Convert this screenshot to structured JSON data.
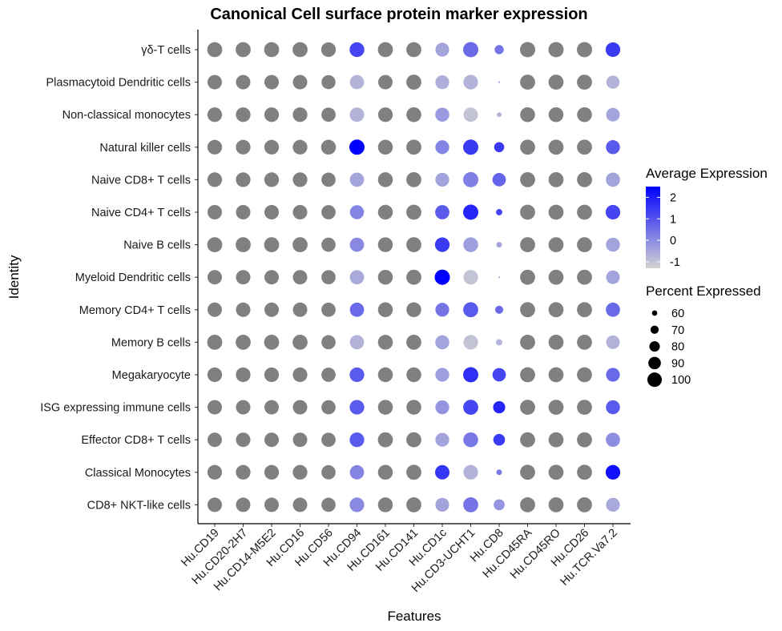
{
  "chart_data": {
    "type": "dot",
    "title": "Canonical Cell surface protein marker expression",
    "xlabel": "Features",
    "ylabel": "Identity",
    "features": [
      "Hu.CD19",
      "Hu.CD20-2H7",
      "Hu.CD14-M5E2",
      "Hu.CD16",
      "Hu.CD56",
      "Hu.CD94",
      "Hu.CD161",
      "Hu.CD141",
      "Hu.CD1c",
      "Hu.CD3-UCHT1",
      "Hu.CD8",
      "Hu.CD45RA",
      "Hu.CD45RO",
      "Hu.CD26",
      "Hu.TCR.Va7.2"
    ],
    "identities": [
      "γδ-T cells",
      "Plasmacytoid Dendritic cells",
      "Non-classical monocytes",
      "Natural killer  cells",
      "Naive CD8+ T cells",
      "Naive CD4+ T cells",
      "Naive B cells",
      "Myeloid Dendritic cells",
      "Memory CD4+ T cells",
      "Memory B cells",
      "Megakaryocyte",
      "ISG expressing immune cells",
      "Effector CD8+ T cells",
      "Classical Monocytes",
      "CD8+ NKT-like cells"
    ],
    "na_color": "#808080",
    "color_scale": {
      "low": "#d3d3d3",
      "high": "#0000ff",
      "min": -1.5,
      "max": 2.5
    },
    "legend": {
      "color_title": "Average Expression",
      "color_ticks": [
        2,
        1,
        0,
        -1
      ],
      "size_title": "Percent Expressed",
      "size_ticks": [
        60,
        70,
        80,
        90,
        100
      ]
    },
    "percent_expressed": [
      [
        99,
        99,
        99,
        99,
        97,
        98,
        99,
        99,
        93,
        100,
        72,
        100,
        100,
        100,
        97
      ],
      [
        96,
        96,
        96,
        96,
        94,
        95,
        96,
        99,
        93,
        97,
        55,
        99,
        99,
        99,
        90
      ],
      [
        97,
        97,
        97,
        97,
        95,
        96,
        97,
        98,
        94,
        96,
        58,
        98,
        98,
        98,
        92
      ],
      [
        97,
        97,
        97,
        97,
        98,
        100,
        98,
        99,
        93,
        100,
        76,
        99,
        99,
        99,
        94
      ],
      [
        97,
        97,
        97,
        97,
        95,
        95,
        98,
        99,
        93,
        100,
        91,
        99,
        99,
        99,
        95
      ],
      [
        96,
        96,
        96,
        96,
        95,
        94,
        98,
        99,
        95,
        100,
        62,
        99,
        99,
        99,
        97
      ],
      [
        99,
        99,
        99,
        99,
        95,
        95,
        98,
        99,
        97,
        98,
        60,
        99,
        99,
        99,
        94
      ],
      [
        96,
        96,
        96,
        96,
        95,
        95,
        98,
        99,
        100,
        97,
        54,
        99,
        99,
        99,
        92
      ],
      [
        96,
        96,
        96,
        96,
        95,
        95,
        98,
        98,
        93,
        99,
        68,
        99,
        99,
        99,
        95
      ],
      [
        99,
        99,
        99,
        99,
        95,
        95,
        98,
        99,
        94,
        97,
        62,
        99,
        99,
        99,
        92
      ],
      [
        97,
        97,
        97,
        97,
        95,
        97,
        98,
        98,
        93,
        100,
        91,
        99,
        99,
        99,
        93
      ],
      [
        96,
        96,
        96,
        96,
        95,
        97,
        98,
        98,
        93,
        99,
        85,
        99,
        99,
        99,
        94
      ],
      [
        96,
        96,
        96,
        96,
        95,
        97,
        99,
        99,
        93,
        98,
        83,
        99,
        99,
        99,
        95
      ],
      [
        97,
        97,
        97,
        97,
        95,
        95,
        98,
        99,
        96,
        97,
        60,
        99,
        99,
        99,
        97
      ],
      [
        96,
        96,
        96,
        96,
        95,
        97,
        98,
        99,
        93,
        99,
        80,
        99,
        99,
        99,
        93
      ]
    ],
    "average_expression": [
      [
        null,
        null,
        null,
        null,
        null,
        1.2,
        null,
        null,
        -0.6,
        0.5,
        0.3,
        null,
        null,
        null,
        1.4
      ],
      [
        null,
        null,
        null,
        null,
        null,
        -0.9,
        null,
        null,
        -0.8,
        -0.9,
        -0.8,
        null,
        null,
        null,
        -0.9
      ],
      [
        null,
        null,
        null,
        null,
        null,
        -0.9,
        null,
        null,
        -0.4,
        -1.2,
        -0.9,
        null,
        null,
        null,
        -0.6
      ],
      [
        null,
        null,
        null,
        null,
        null,
        2.5,
        null,
        null,
        0.0,
        1.4,
        1.4,
        null,
        null,
        null,
        0.8
      ],
      [
        null,
        null,
        null,
        null,
        null,
        -0.6,
        null,
        null,
        -0.6,
        0.1,
        0.6,
        null,
        null,
        null,
        -0.6
      ],
      [
        null,
        null,
        null,
        null,
        null,
        0.0,
        null,
        null,
        0.8,
        1.8,
        1.2,
        null,
        null,
        null,
        1.2
      ],
      [
        null,
        null,
        null,
        null,
        null,
        -0.1,
        null,
        null,
        1.4,
        -0.5,
        -0.6,
        null,
        null,
        null,
        -0.6
      ],
      [
        null,
        null,
        null,
        null,
        null,
        -0.7,
        null,
        null,
        2.5,
        -1.2,
        -0.9,
        null,
        null,
        null,
        -0.6
      ],
      [
        null,
        null,
        null,
        null,
        null,
        0.5,
        null,
        null,
        0.3,
        0.8,
        0.5,
        null,
        null,
        null,
        0.5
      ],
      [
        null,
        null,
        null,
        null,
        null,
        -0.9,
        null,
        null,
        -0.6,
        -1.2,
        -0.9,
        null,
        null,
        null,
        -0.9
      ],
      [
        null,
        null,
        null,
        null,
        null,
        0.8,
        null,
        null,
        -0.5,
        1.6,
        1.2,
        null,
        null,
        null,
        0.5
      ],
      [
        null,
        null,
        null,
        null,
        null,
        0.8,
        null,
        null,
        -0.3,
        1.2,
        1.8,
        null,
        null,
        null,
        0.8
      ],
      [
        null,
        null,
        null,
        null,
        null,
        0.8,
        null,
        null,
        -0.6,
        0.2,
        1.4,
        null,
        null,
        null,
        -0.2
      ],
      [
        null,
        null,
        null,
        null,
        null,
        0.0,
        null,
        null,
        1.5,
        -0.9,
        0.2,
        null,
        null,
        null,
        2.2
      ],
      [
        null,
        null,
        null,
        null,
        null,
        -0.1,
        null,
        null,
        -0.6,
        0.3,
        -0.3,
        null,
        null,
        null,
        -0.7
      ]
    ]
  }
}
